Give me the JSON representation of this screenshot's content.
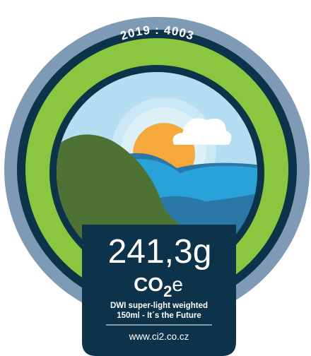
{
  "badge": {
    "code": "2019 : 4003",
    "amount": "241,3g",
    "unit": {
      "main": "CO",
      "sub": "2",
      "suffix": "e"
    },
    "description": [
      "DWI super-light weighted",
      "150ml - It´s the Future"
    ],
    "website": "www.ci2.co.cz"
  }
}
